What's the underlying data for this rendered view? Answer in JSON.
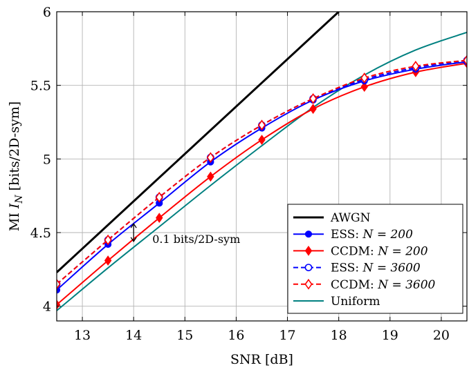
{
  "chart_data": {
    "type": "line",
    "xlabel": "SNR [dB]",
    "ylabel": "MI I_N [bits/2D-sym]",
    "ylabel_prefix": "MI ",
    "ylabel_var": "I",
    "ylabel_sub": "N",
    "ylabel_suffix": " [bits/2D-sym]",
    "xlim": [
      12.5,
      20.5
    ],
    "ylim": [
      3.9,
      6.0
    ],
    "xticks": [
      13,
      14,
      15,
      16,
      17,
      18,
      19,
      20
    ],
    "yticks": [
      4,
      4.5,
      5,
      5.5,
      6
    ],
    "ytick_labels": [
      "4",
      "4.5",
      "5",
      "5.5",
      "6"
    ],
    "grid": true,
    "legend_position": "bottom-right",
    "annotation": {
      "text": "0.1 bits/2D-sym",
      "x": 14,
      "y_from": 4.44,
      "y_to": 4.56
    },
    "series": [
      {
        "name": "AWGN",
        "legend_prefix": "AWGN",
        "legend_math": "",
        "color": "#000000",
        "dash": false,
        "width": 3,
        "marker": "none",
        "x": [
          12.5,
          18.0
        ],
        "y": [
          4.23,
          6.0
        ]
      },
      {
        "name": "ESS: N = 200",
        "legend_prefix": "ESS: ",
        "legend_math": "N = 200",
        "color": "#0000ff",
        "dash": false,
        "width": 2,
        "marker": "circle-filled",
        "x": [
          12.5,
          13.5,
          14.5,
          15.5,
          16.5,
          17.5,
          18.5,
          19.5,
          20.5
        ],
        "y": [
          4.11,
          4.42,
          4.7,
          4.98,
          5.21,
          5.4,
          5.53,
          5.61,
          5.66
        ]
      },
      {
        "name": "CCDM: N = 200",
        "legend_prefix": "CCDM: ",
        "legend_math": "N = 200",
        "color": "#ff0000",
        "dash": false,
        "width": 2,
        "marker": "diamond-filled",
        "x": [
          12.5,
          13.5,
          14.5,
          15.5,
          16.5,
          17.5,
          18.5,
          19.5,
          20.5
        ],
        "y": [
          4.01,
          4.31,
          4.6,
          4.88,
          5.13,
          5.34,
          5.49,
          5.59,
          5.65
        ]
      },
      {
        "name": "ESS: N = 3600",
        "legend_prefix": "ESS: ",
        "legend_math": "N = 3600",
        "color": "#0000ff",
        "dash": true,
        "width": 2,
        "marker": "circle-open",
        "x": [
          12.5,
          13.5,
          14.5,
          15.5,
          16.5,
          17.5,
          18.5,
          19.5,
          20.5
        ],
        "y": [
          4.15,
          4.45,
          4.74,
          5.01,
          5.23,
          5.41,
          5.54,
          5.62,
          5.67
        ]
      },
      {
        "name": "CCDM: N = 3600",
        "legend_prefix": "CCDM: ",
        "legend_math": "N = 3600",
        "color": "#ff0000",
        "dash": true,
        "width": 2,
        "marker": "diamond-open",
        "x": [
          12.5,
          13.5,
          14.5,
          15.5,
          16.5,
          17.5,
          18.5,
          19.5,
          20.5
        ],
        "y": [
          4.15,
          4.45,
          4.74,
          5.01,
          5.23,
          5.41,
          5.55,
          5.63,
          5.67
        ]
      },
      {
        "name": "Uniform",
        "legend_prefix": "Uniform",
        "legend_math": "",
        "color": "#008080",
        "dash": false,
        "width": 2,
        "marker": "none",
        "x": [
          12.5,
          13.5,
          14.5,
          15.5,
          16.5,
          17.5,
          18.5,
          19.5,
          20.5
        ],
        "y": [
          3.97,
          4.26,
          4.54,
          4.82,
          5.09,
          5.35,
          5.57,
          5.74,
          5.86
        ]
      }
    ]
  }
}
